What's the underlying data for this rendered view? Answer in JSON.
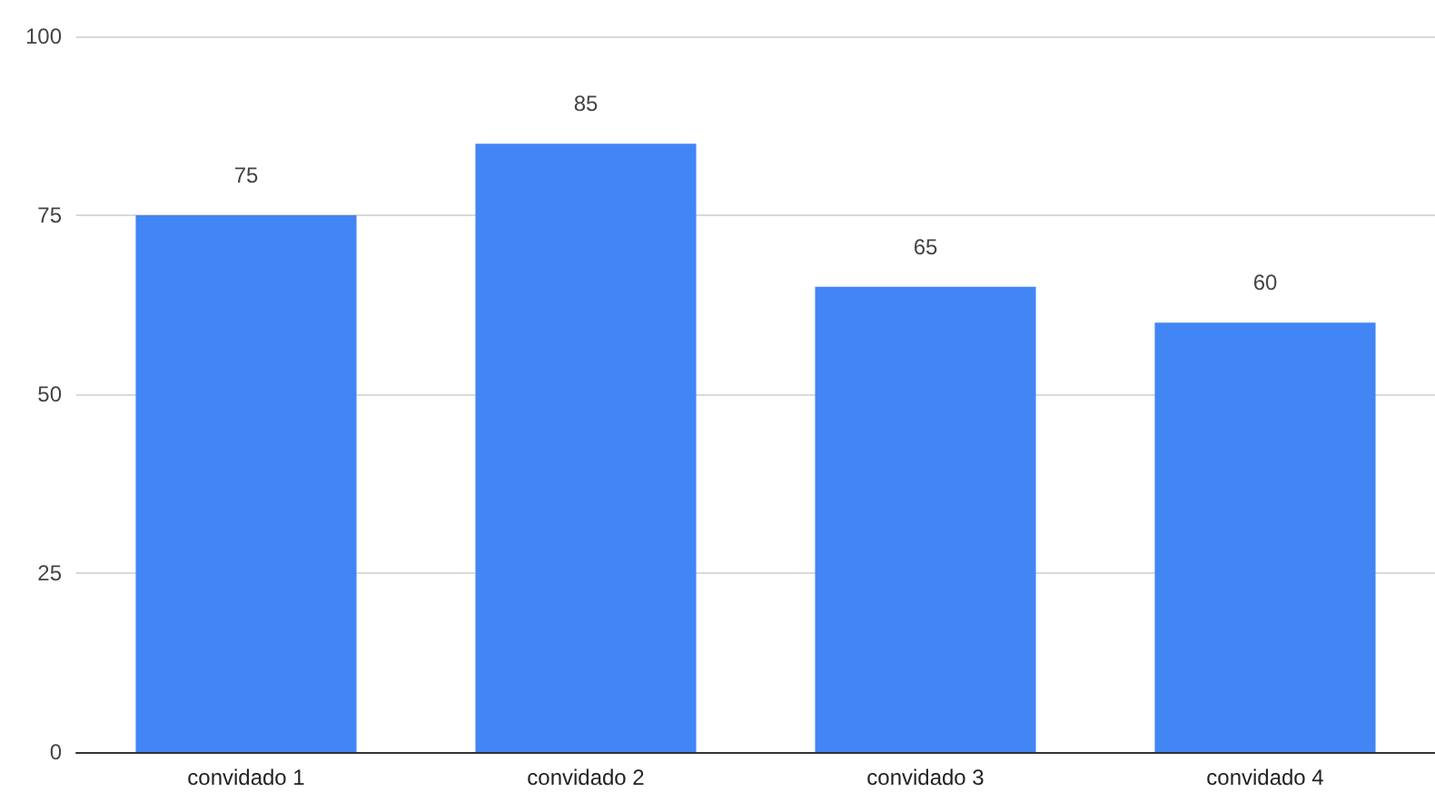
{
  "chart_data": {
    "type": "bar",
    "categories": [
      "convidado 1",
      "convidado 2",
      "convidado 3",
      "convidado 4"
    ],
    "values": [
      75,
      85,
      65,
      60
    ],
    "color": "#4285f4",
    "ylim": [
      0,
      100
    ],
    "yticks": [
      0,
      25,
      50,
      75,
      100
    ],
    "grid": "y",
    "data_labels": true
  }
}
